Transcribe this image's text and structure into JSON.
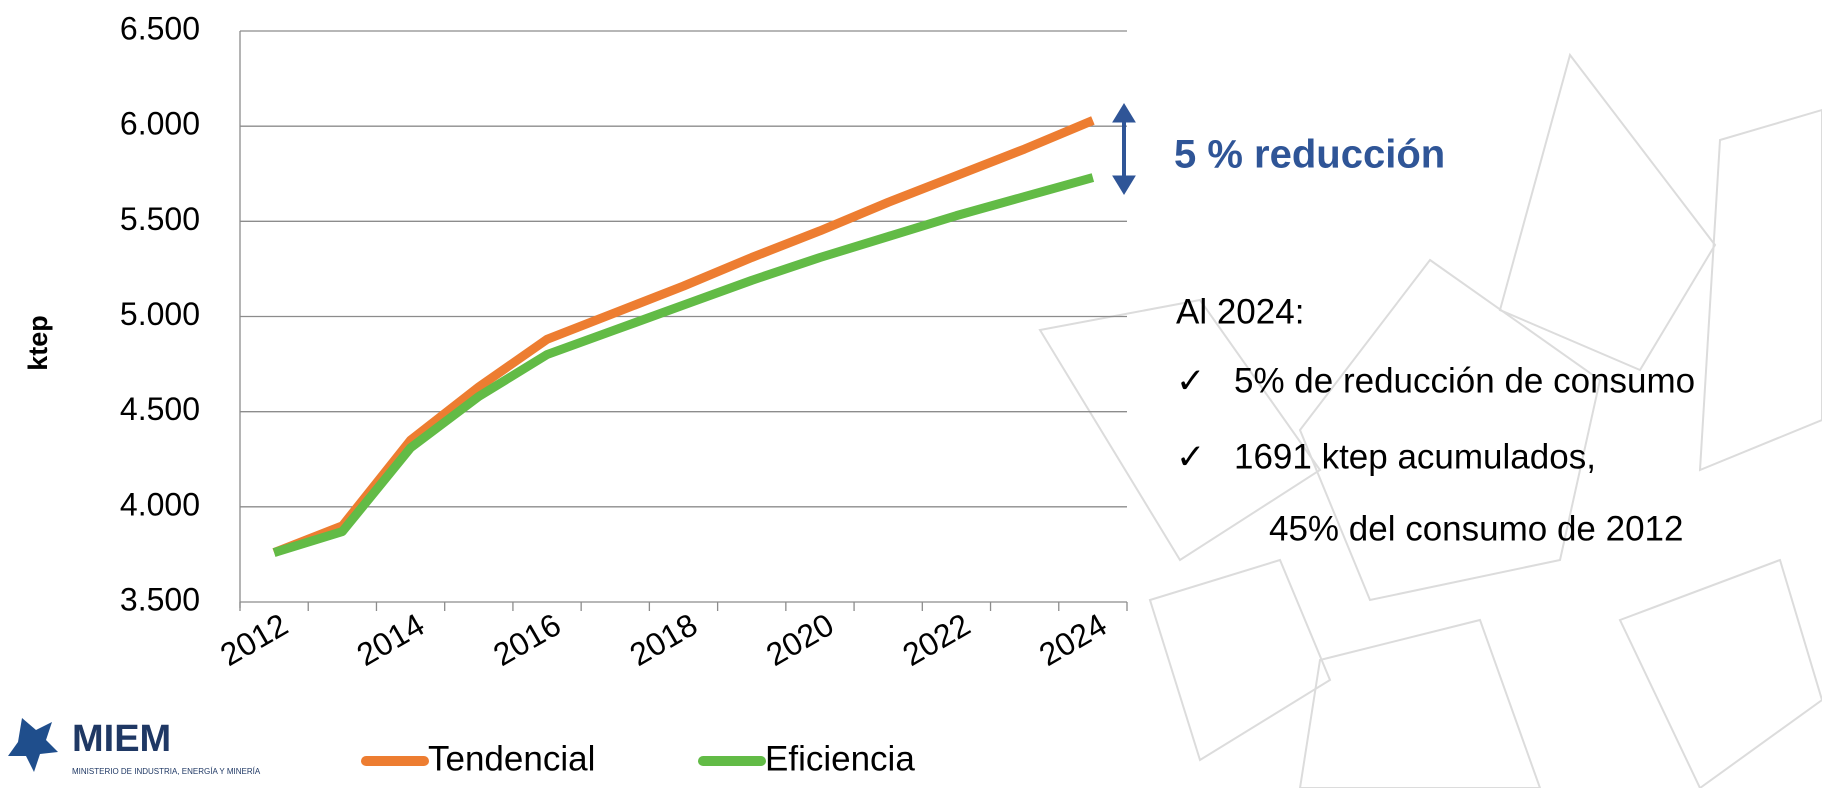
{
  "chart_data": {
    "type": "line",
    "ylabel": "ktep",
    "categories": [
      "2012",
      null,
      "2014",
      null,
      "2016",
      null,
      "2018",
      null,
      "2020",
      null,
      "2022",
      null,
      "2024"
    ],
    "series": [
      {
        "name": "Tendencial",
        "color": "#ed7d31",
        "values": [
          3760,
          3900,
          4350,
          4630,
          4880,
          5020,
          5160,
          5310,
          5450,
          5600,
          5740,
          5880,
          6030
        ]
      },
      {
        "name": "Eficiencia",
        "color": "#62bb46",
        "values": [
          3760,
          3870,
          4310,
          4580,
          4800,
          4930,
          5060,
          5190,
          5310,
          5420,
          5530,
          5630,
          5730
        ]
      }
    ],
    "ylim": [
      3500,
      6500
    ],
    "yticks": [
      {
        "value": 3500,
        "label": "3.500"
      },
      {
        "value": 4000,
        "label": "4.000"
      },
      {
        "value": 4500,
        "label": "4.500"
      },
      {
        "value": 5000,
        "label": "5.000"
      },
      {
        "value": 5500,
        "label": "5.500"
      },
      {
        "value": 6000,
        "label": "6.000"
      },
      {
        "value": 6500,
        "label": "6.500"
      }
    ],
    "grid": true,
    "annotations": {
      "highlight": "5 % reducción",
      "heading": "Al 2024:",
      "bullet": "✓",
      "lines": [
        "5% de reducción de consumo",
        "1691 ktep acumulados,",
        "45% del consumo de 2012"
      ]
    }
  },
  "logo": {
    "name": "MIEM",
    "subtitle": "MINISTERIO DE INDUSTRIA, ENERGÍA Y MINERÍA"
  }
}
